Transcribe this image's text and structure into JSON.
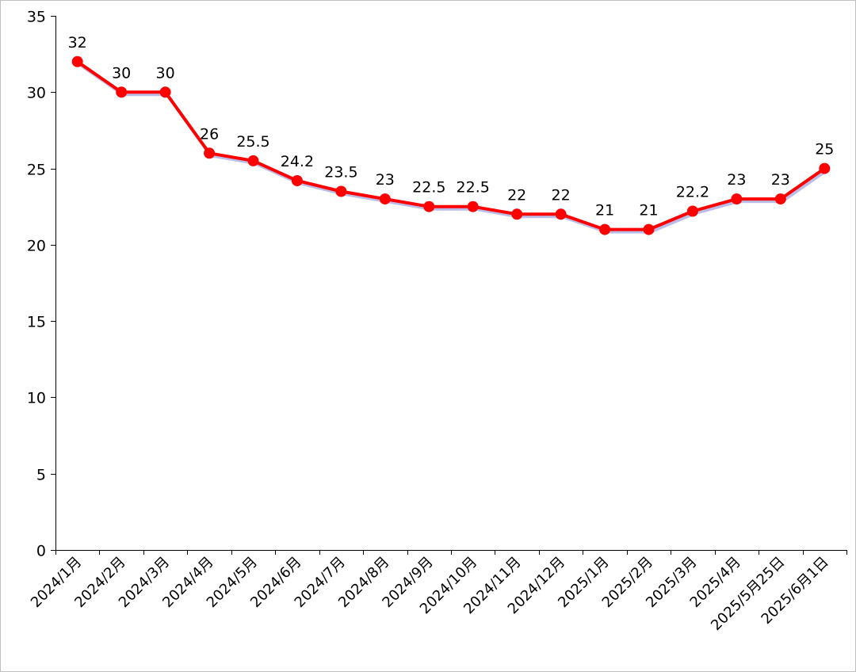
{
  "chart_data": {
    "type": "line",
    "categories": [
      "2024/1月",
      "2024/2月",
      "2024/3月",
      "2024/4月",
      "2024/5月",
      "2024/6月",
      "2024/7月",
      "2024/8月",
      "2024/9月",
      "2024/10月",
      "2024/11月",
      "2024/12月",
      "2025/1月",
      "2025/2月",
      "2025/3月",
      "2025/4月",
      "2025/5月25日",
      "2025/6月1日"
    ],
    "series": [
      {
        "values": [
          32,
          30,
          30,
          26,
          25.5,
          24.2,
          23.5,
          23,
          22.5,
          22.5,
          22,
          22,
          21,
          21,
          22.2,
          23,
          23,
          25
        ],
        "data_labels": [
          "32",
          "30",
          "30",
          "26",
          "25.5",
          "24.2",
          "23.5",
          "23",
          "22.5",
          "22.5",
          "22",
          "22",
          "21",
          "21",
          "22.2",
          "23",
          "23",
          "25"
        ],
        "color": "#ff0000"
      }
    ],
    "ylim": [
      0,
      35
    ],
    "yticks": [
      0,
      5,
      10,
      15,
      20,
      25,
      30,
      35
    ],
    "ytick_labels": [
      "0",
      "5",
      "10",
      "15",
      "20",
      "25",
      "30",
      "35"
    ],
    "title": "",
    "xlabel": "",
    "ylabel": "",
    "grid": false,
    "legend": "none",
    "marker": "circle"
  }
}
